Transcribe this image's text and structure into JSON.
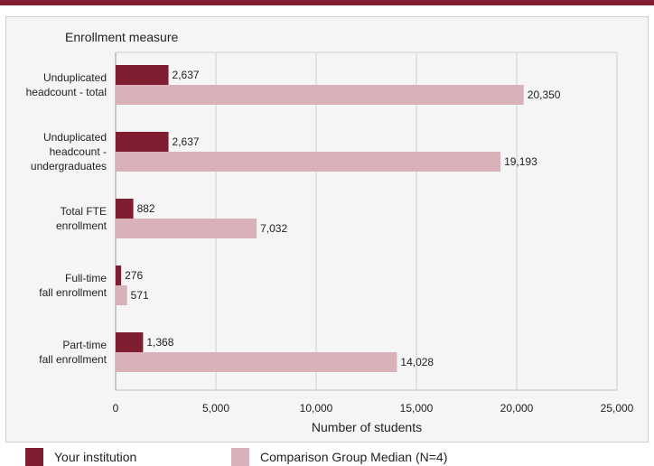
{
  "chart_data": {
    "type": "bar",
    "orientation": "horizontal",
    "y_axis_title": "Enrollment measure",
    "xlabel": "Number of students",
    "xlim": [
      0,
      25000
    ],
    "x_ticks": [
      0,
      5000,
      10000,
      15000,
      20000,
      25000
    ],
    "x_tick_labels": [
      "0",
      "5,000",
      "10,000",
      "15,000",
      "20,000",
      "25,000"
    ],
    "grid": true,
    "legend_position": "bottom",
    "categories": [
      [
        "Unduplicated",
        "headcount - total"
      ],
      [
        "Unduplicated",
        "headcount -",
        "undergraduates"
      ],
      [
        "Total FTE",
        "enrollment"
      ],
      [
        "Full-time",
        "fall enrollment"
      ],
      [
        "Part-time",
        "fall enrollment"
      ]
    ],
    "series": [
      {
        "name": "Your institution",
        "color": "#7f1d31",
        "values": [
          2637,
          2637,
          882,
          276,
          1368
        ],
        "labels": [
          "2,637",
          "2,637",
          "882",
          "276",
          "1,368"
        ]
      },
      {
        "name": "Comparison Group Median (N=4)",
        "color": "#d8b1b9",
        "values": [
          20350,
          19193,
          7032,
          571,
          14028
        ],
        "labels": [
          "20,350",
          "19,193",
          "7,032",
          "571",
          "14,028"
        ]
      }
    ]
  }
}
